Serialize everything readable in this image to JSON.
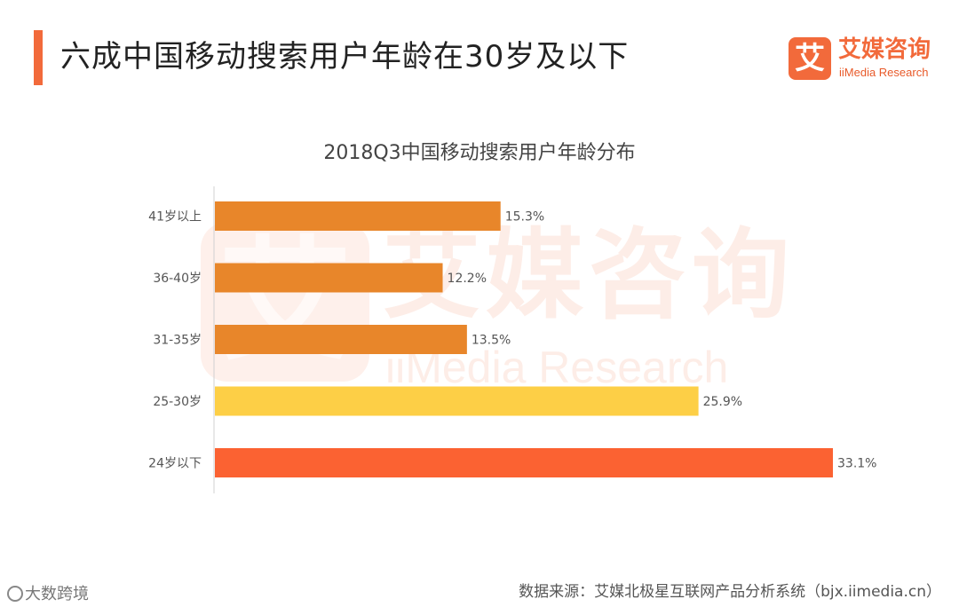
{
  "header": {
    "title": "六成中国移动搜索用户年龄在30岁及以下",
    "logo_mark": "艾",
    "logo_name": "艾媒咨询",
    "logo_sub": "iiMedia Research"
  },
  "watermark": {
    "mark": "艾",
    "name": "艾媒咨询",
    "sub": "iiMedia Research"
  },
  "footer": {
    "source": "数据来源：艾媒北极星互联网产品分析系统（bjx.iimedia.cn）",
    "corner_brand": "大数跨境"
  },
  "chart_data": {
    "type": "bar",
    "orientation": "horizontal",
    "title": "2018Q3中国移动搜索用户年龄分布",
    "categories": [
      "41岁以上",
      "36-40岁",
      "31-35岁",
      "25-30岁",
      "24岁以下"
    ],
    "values": [
      15.3,
      12.2,
      13.5,
      25.9,
      33.1
    ],
    "value_labels": [
      "15.3%",
      "12.2%",
      "13.5%",
      "25.9%",
      "33.1%"
    ],
    "colors": [
      "#e8862a",
      "#e8862a",
      "#e8862a",
      "#fdcf46",
      "#fb6232"
    ],
    "unit": "%",
    "xlim": [
      0,
      33.1
    ],
    "grid": false,
    "legend": "none"
  }
}
